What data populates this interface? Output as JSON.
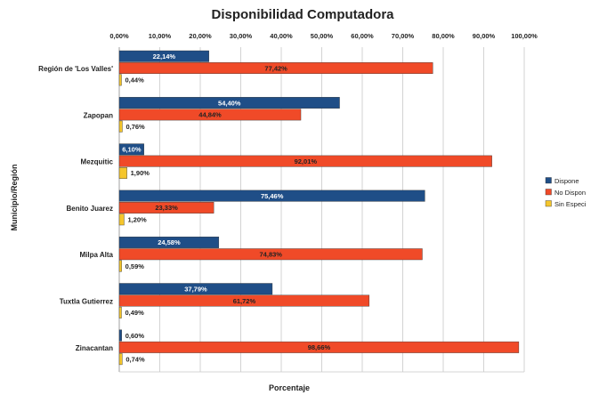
{
  "chart_data": {
    "type": "bar",
    "orientation": "horizontal",
    "title": "Disponibilidad Computadora",
    "xlabel": "Porcentaje",
    "ylabel": "Municipio/Región",
    "xlim": [
      0,
      100
    ],
    "x_ticks": [
      "0,00%",
      "10,00%",
      "20,00%",
      "30,00%",
      "40,00%",
      "50,00%",
      "60,00%",
      "70,00%",
      "80,00%",
      "90,00%",
      "100,00%"
    ],
    "x_axis_position": "top",
    "grid": true,
    "legend_position": "right",
    "categories": [
      "Región de 'Los Valles'",
      "Zapopan",
      "Mezquitic",
      "Benito Juarez",
      "Milpa Alta",
      "Tuxtla Gutierrez",
      "Zinacantan"
    ],
    "series": [
      {
        "name": "Dispone",
        "color": "#1f4e87",
        "label_color": "#ffffff",
        "values": [
          22.14,
          54.4,
          6.1,
          75.46,
          24.58,
          37.79,
          0.6
        ],
        "labels": [
          "22,14%",
          "54,40%",
          "6,10%",
          "75,46%",
          "24,58%",
          "37,79%",
          "0,60%"
        ]
      },
      {
        "name": "No Dispon",
        "color": "#f04a28",
        "label_color": "#222222",
        "values": [
          77.42,
          44.84,
          92.01,
          23.33,
          74.83,
          61.72,
          98.66
        ],
        "labels": [
          "77,42%",
          "44,84%",
          "92,01%",
          "23,33%",
          "74,83%",
          "61,72%",
          "98,66%"
        ]
      },
      {
        "name": "Sin Especi",
        "color": "#f5c62c",
        "label_color": "#222222",
        "values": [
          0.44,
          0.76,
          1.9,
          1.2,
          0.59,
          0.49,
          0.74
        ],
        "labels": [
          "0,44%",
          "0,76%",
          "1,90%",
          "1,20%",
          "0,59%",
          "0,49%",
          "0,74%"
        ]
      }
    ]
  }
}
